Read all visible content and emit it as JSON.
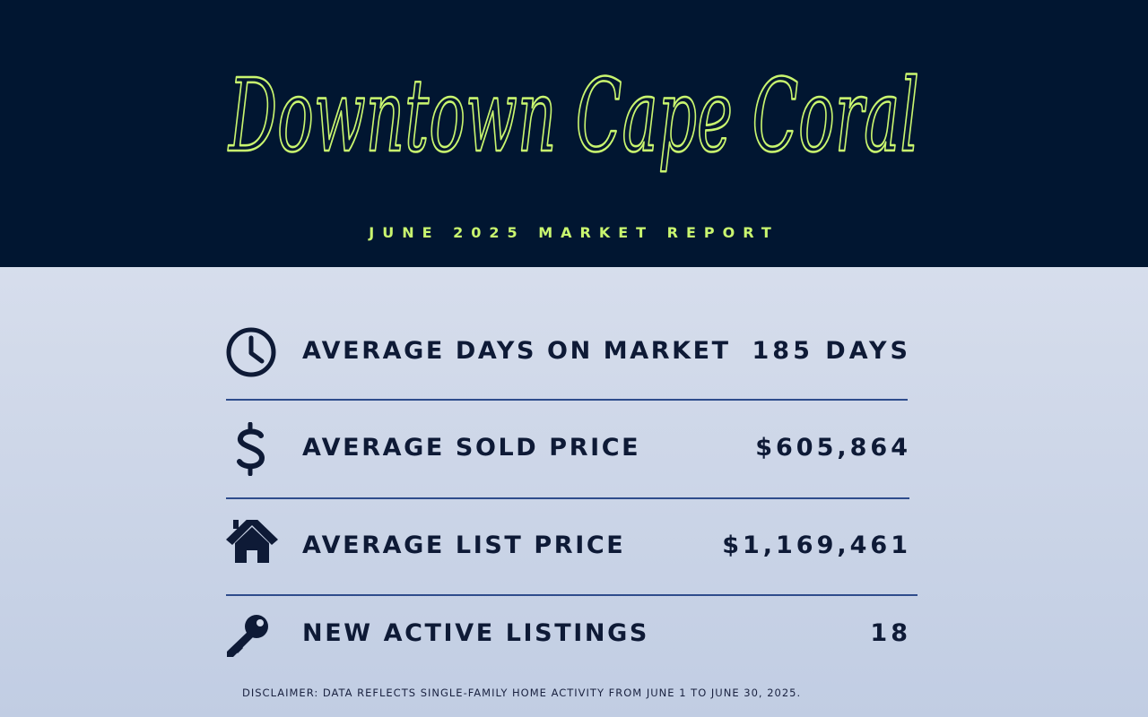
{
  "header": {
    "title": "Downtown Cape Coral",
    "subtitle": "JUNE 2025 MARKET REPORT",
    "background_color": "#011631",
    "accent_color": "#c9f56f"
  },
  "stats": [
    {
      "icon": "clock-icon",
      "label": "AVERAGE DAYS ON MARKET",
      "value": "185 DAYS"
    },
    {
      "icon": "dollar-sign-icon",
      "label": "AVERAGE SOLD PRICE",
      "value": "$605,864"
    },
    {
      "icon": "house-icon",
      "label": "AVERAGE LIST PRICE",
      "value": "$1,169,461"
    },
    {
      "icon": "key-icon",
      "label": "NEW ACTIVE LISTINGS",
      "value": "18"
    }
  ],
  "disclaimer": "DISCLAIMER: DATA REFLECTS SINGLE-FAMILY HOME ACTIVITY FROM JUNE 1 TO JUNE 30, 2025.",
  "colors": {
    "text_dark": "#0e1a36",
    "divider": "#2e4c8c"
  }
}
